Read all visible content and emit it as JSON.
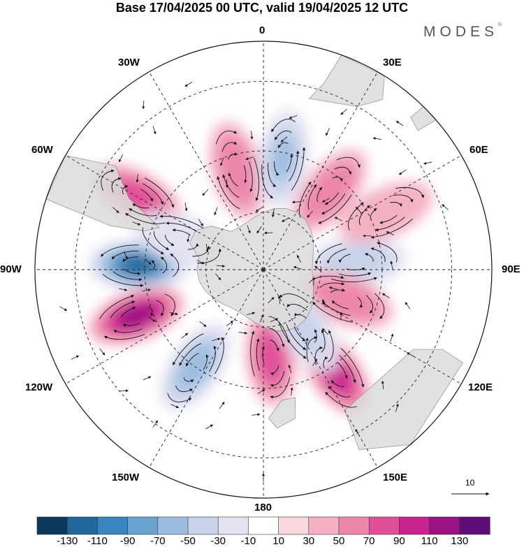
{
  "title": "Base 17/04/2025 00 UTC, valid 19/04/2025 12 UTC",
  "logo": {
    "text": "MODES",
    "mark": "©"
  },
  "map": {
    "projection": "south-polar-stereographic",
    "longitude_labels": {
      "top": "0",
      "top_left": "30W",
      "top_right": "30E",
      "upper_left": "60W",
      "upper_right": "60E",
      "left": "90W",
      "right": "90E",
      "lower_left": "120W",
      "lower_right": "120E",
      "bottom_left": "150W",
      "bottom_right": "150E",
      "bottom": "180"
    },
    "reference_vector_label": "10",
    "shaded_anomalies": [
      {
        "lon": -88,
        "lat": -48,
        "value": -130
      },
      {
        "lon": -110,
        "lat": -45,
        "value": 110
      },
      {
        "lon": -60,
        "lat": -42,
        "value": 70
      },
      {
        "lon": -145,
        "lat": -50,
        "value": -70
      },
      {
        "lon": -15,
        "lat": -55,
        "value": 60
      },
      {
        "lon": 10,
        "lat": -52,
        "value": -55
      },
      {
        "lon": 40,
        "lat": -55,
        "value": 65
      },
      {
        "lon": 85,
        "lat": -58,
        "value": -50
      },
      {
        "lon": 110,
        "lat": -60,
        "value": 60
      },
      {
        "lon": 145,
        "lat": -48,
        "value": 90
      },
      {
        "lon": 175,
        "lat": -60,
        "value": 70
      },
      {
        "lon": 145,
        "lat": -65,
        "value": -40
      },
      {
        "lon": 65,
        "lat": -45,
        "value": 30
      },
      {
        "lon": -70,
        "lat": -60,
        "value": -20
      }
    ]
  },
  "colorbar": {
    "colors": [
      "#0d3a5c",
      "#1f6699",
      "#3a85bf",
      "#6aa3cf",
      "#9dbde0",
      "#c7d3ea",
      "#e3e2f2",
      "#ffffff",
      "#f8d8dc",
      "#f3b0c2",
      "#ec86ab",
      "#e0509a",
      "#c8228e",
      "#9a1184",
      "#5e0c78"
    ],
    "labels": [
      "-130",
      "-110",
      "-90",
      "-70",
      "-50",
      "-30",
      "-10",
      "10",
      "30",
      "50",
      "70",
      "90",
      "110",
      "130"
    ]
  }
}
